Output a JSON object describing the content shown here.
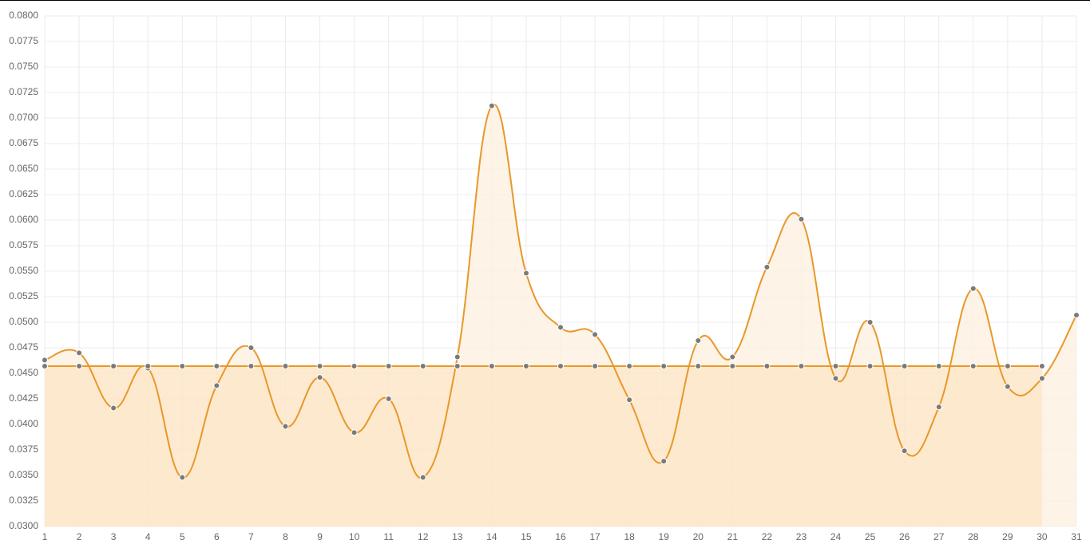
{
  "chart_data": {
    "type": "line",
    "area": true,
    "grid": true,
    "categories": [
      "1",
      "2",
      "3",
      "4",
      "5",
      "6",
      "7",
      "8",
      "9",
      "10",
      "11",
      "12",
      "13",
      "14",
      "15",
      "16",
      "17",
      "18",
      "19",
      "20",
      "21",
      "22",
      "23",
      "24",
      "25",
      "26",
      "27",
      "28",
      "29",
      "30",
      "31"
    ],
    "series": [
      {
        "color": "#e8982a",
        "fill": "#fdf1e2",
        "values": [
          0.0463,
          0.047,
          0.0416,
          0.0455,
          0.0348,
          0.0438,
          0.0475,
          0.0398,
          0.0446,
          0.0392,
          0.0425,
          0.0348,
          0.0466,
          0.0712,
          0.0548,
          0.0495,
          0.0488,
          0.0424,
          0.0364,
          0.0482,
          0.0466,
          0.0554,
          0.0601,
          0.0445,
          0.05,
          0.0374,
          0.0417,
          0.0533,
          0.0437,
          0.0445,
          0.0507
        ]
      },
      {
        "color": "#e8982a",
        "fill": "#fde6c8",
        "values": [
          0.0457,
          0.0457,
          0.0457,
          0.0457,
          0.0457,
          0.0457,
          0.0457,
          0.0457,
          0.0457,
          0.0457,
          0.0457,
          0.0457,
          0.0457,
          0.0457,
          0.0457,
          0.0457,
          0.0457,
          0.0457,
          0.0457,
          0.0457,
          0.0457,
          0.0457,
          0.0457,
          0.0457,
          0.0457,
          0.0457,
          0.0457,
          0.0457,
          0.0457,
          0.0457,
          null
        ]
      }
    ],
    "ylim": [
      0.03,
      0.08
    ],
    "yticks": [
      {
        "value": 0.03,
        "label": "0.0300"
      },
      {
        "value": 0.0325,
        "label": "0.0325"
      },
      {
        "value": 0.035,
        "label": "0.0350"
      },
      {
        "value": 0.0375,
        "label": "0.0375"
      },
      {
        "value": 0.04,
        "label": "0.0400"
      },
      {
        "value": 0.0425,
        "label": "0.0425"
      },
      {
        "value": 0.045,
        "label": "0.0450"
      },
      {
        "value": 0.0475,
        "label": "0.0475"
      },
      {
        "value": 0.05,
        "label": "0.0500"
      },
      {
        "value": 0.0525,
        "label": "0.0525"
      },
      {
        "value": 0.055,
        "label": "0.0550"
      },
      {
        "value": 0.0575,
        "label": "0.0575"
      },
      {
        "value": 0.06,
        "label": "0.0600"
      },
      {
        "value": 0.0625,
        "label": "0.0625"
      },
      {
        "value": 0.065,
        "label": "0.0650"
      },
      {
        "value": 0.0675,
        "label": "0.0675"
      },
      {
        "value": 0.07,
        "label": "0.0700"
      },
      {
        "value": 0.0725,
        "label": "0.0725"
      },
      {
        "value": 0.075,
        "label": "0.0750"
      },
      {
        "value": 0.0775,
        "label": "0.0775"
      },
      {
        "value": 0.08,
        "label": "0.0800"
      }
    ]
  }
}
